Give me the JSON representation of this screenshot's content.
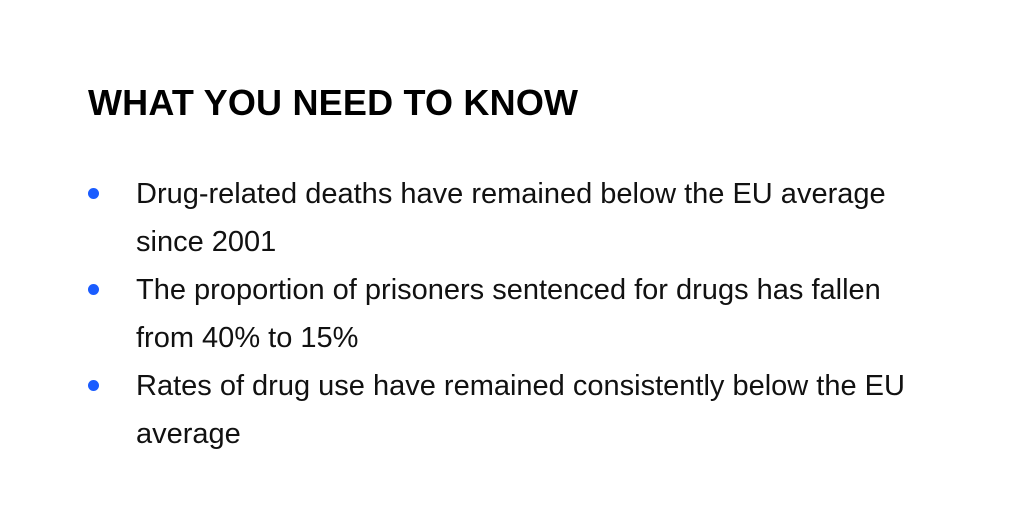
{
  "heading": "WHAT YOU NEED TO KNOW",
  "bullet_color": "#1a5cff",
  "items": [
    {
      "text": "Drug-related deaths have remained below the EU average since 2001"
    },
    {
      "text": "The proportion of prisoners sentenced for drugs has fallen from 40% to 15%"
    },
    {
      "text": "Rates of drug use have remained consistently below the EU average"
    }
  ]
}
